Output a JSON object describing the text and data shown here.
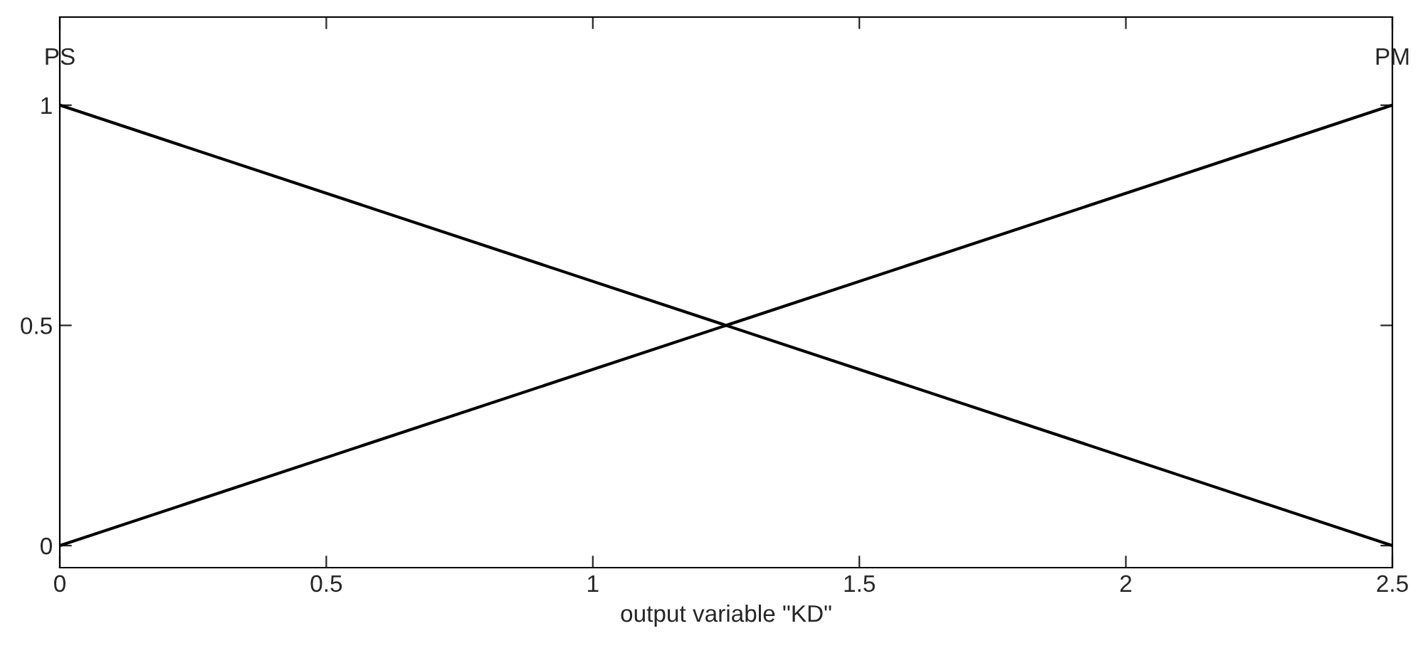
{
  "chart_data": {
    "type": "line",
    "xlabel": "output variable \"KD\"",
    "x": [
      0,
      2.5
    ],
    "series": [
      {
        "name": "PS",
        "color": "#000000",
        "values": [
          1,
          0
        ]
      },
      {
        "name": "PM",
        "color": "#000000",
        "values": [
          0,
          1
        ]
      }
    ],
    "xlim": [
      0,
      2.5
    ],
    "ylim": [
      -0.05,
      1.2
    ],
    "xticks": [
      0,
      0.5,
      1,
      1.5,
      2,
      2.5
    ],
    "yticks": [
      0,
      0.5,
      1
    ],
    "grid": false,
    "legend": false,
    "marker": "none",
    "line_style": "solid"
  }
}
